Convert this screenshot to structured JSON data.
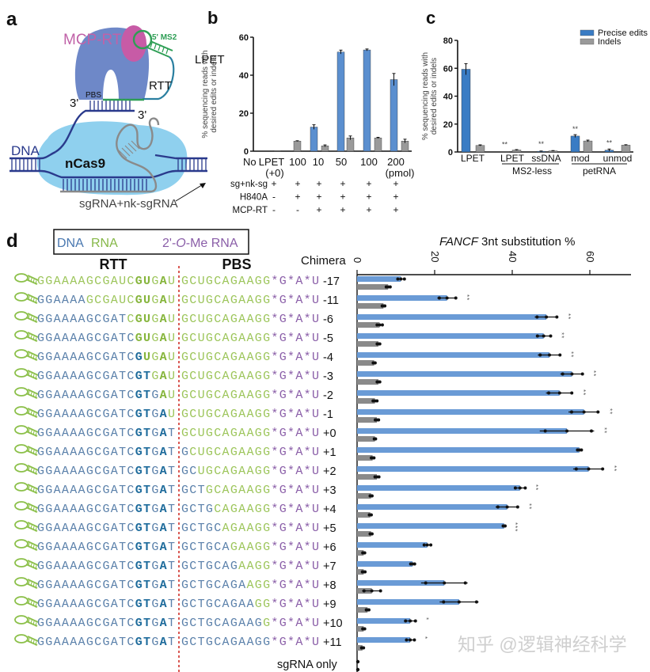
{
  "panel_letters": {
    "a": "a",
    "b": "b",
    "c": "c",
    "d": "d"
  },
  "panel_a": {
    "mcp_rt": "MCP-RT",
    "ms2": "5' MS2",
    "lpet": "LPET",
    "rtt": "RTT",
    "pbs": "PBS",
    "three_prime_1": "3'",
    "three_prime_2": "3'",
    "dna": "DNA",
    "ncas9": "nCas9",
    "sgrna": "sgRNA+nk-sgRNA",
    "colors": {
      "cas9": "#8fd0ee",
      "rt": "#6e88c8",
      "mcp": "#c75ba6",
      "ms2": "#2e9e55",
      "dna": "#2a3a8c",
      "sgrna": "#8a8a8a"
    }
  },
  "chart_data": [
    {
      "panel": "b",
      "type": "bar",
      "ylabel": [
        "% sequencing reads with",
        "desired edits or indels"
      ],
      "ylim": [
        0,
        60
      ],
      "yticks": [
        "0",
        "20",
        "40",
        "60"
      ],
      "categories": [
        [
          "No",
          "LPET",
          "(+0)"
        ],
        [
          "100"
        ],
        [
          "10"
        ],
        [
          "50"
        ],
        [
          "100"
        ],
        [
          "200",
          "(pmol)"
        ]
      ],
      "series": [
        {
          "name": "Precise edits",
          "color": "#5b8fcf",
          "values": [
            0,
            0,
            12.7,
            52.2,
            53.3,
            37.7
          ],
          "err": [
            0,
            0,
            1.2,
            1.0,
            0.5,
            3.2
          ]
        },
        {
          "name": "Indels",
          "color": "#9a9a9a",
          "values": [
            0.3,
            5.3,
            2.8,
            7.0,
            7.0,
            5.3
          ],
          "err": [
            0,
            0.2,
            0.5,
            1.0,
            0.3,
            1.0
          ]
        }
      ],
      "condition_rows": [
        {
          "label": "sg+nk-sg",
          "values": [
            "+",
            "+",
            "+",
            "+",
            "+",
            "+"
          ]
        },
        {
          "label": "H840A",
          "values": [
            "-",
            "+",
            "+",
            "+",
            "+",
            "+"
          ]
        },
        {
          "label": "MCP-RT",
          "values": [
            "-",
            "-",
            "+",
            "+",
            "+",
            "+"
          ]
        }
      ]
    },
    {
      "panel": "c",
      "type": "bar",
      "ylabel": [
        "% sequencing reads with",
        "desired edits or indels"
      ],
      "ylim": [
        0,
        80
      ],
      "yticks": [
        "0",
        "20",
        "40",
        "60",
        "80"
      ],
      "categories": [
        "LPET",
        "LPET",
        "ssDNA",
        "mod",
        "unmod"
      ],
      "groups": [
        {
          "label": "MS2-less",
          "members": [
            "LPET",
            "ssDNA"
          ]
        },
        {
          "label": "petRNA",
          "members": [
            "mod",
            "unmod"
          ]
        }
      ],
      "legend": {
        "position": "top-right",
        "entries": [
          "Precise edits",
          "Indels"
        ]
      },
      "series": [
        {
          "name": "Precise edits",
          "color": "#3a7cc4",
          "values": [
            59.3,
            0.2,
            0.5,
            11.4,
            1.3
          ],
          "err": [
            4.0,
            0,
            0.2,
            1.0,
            0.8
          ],
          "significance": [
            "",
            "**",
            "**",
            "**",
            "**"
          ]
        },
        {
          "name": "Indels",
          "color": "#9a9a9a",
          "values": [
            4.7,
            1.4,
            0.8,
            7.9,
            4.9
          ],
          "err": [
            0.4,
            0.3,
            0.2,
            0.6,
            0.3
          ]
        }
      ]
    },
    {
      "panel": "d",
      "type": "bar",
      "orientation": "horizontal",
      "xlabel_italic": "FANCF",
      "xlabel_rest": " 3nt substitution %",
      "xlim": [
        0,
        70
      ],
      "xticks": [
        "0",
        "20",
        "40",
        "60"
      ],
      "category_header": "Chimera",
      "categories": [
        "-17",
        "-11",
        "-6",
        "-5",
        "-4",
        "-3",
        "-2",
        "-1",
        "+0",
        "+1",
        "+2",
        "+3",
        "+4",
        "+5",
        "+6",
        "+7",
        "+8",
        "+9",
        "+10",
        "+11",
        "sgRNA only"
      ],
      "series": [
        {
          "name": "Precise edits",
          "color": "#6a9bd6",
          "values": [
            11.3,
            23.2,
            48.8,
            48.1,
            49.6,
            55.4,
            52.2,
            58.5,
            54.1,
            57.3,
            59.7,
            42.0,
            38.7,
            37.9,
            18.1,
            14.3,
            22.5,
            26.3,
            13.7,
            13.7,
            0
          ],
          "err": [
            1.0,
            2.5,
            3.0,
            2.0,
            3.0,
            3.0,
            3.5,
            4.0,
            7.0,
            0.6,
            4.0,
            1.5,
            3.0,
            0.3,
            1.0,
            0.6,
            6.0,
            5.0,
            1.5,
            1.2,
            0
          ],
          "significance": [
            "",
            "**",
            "**",
            "**",
            "**",
            "**",
            "**",
            "**",
            "**",
            "",
            "**",
            "**",
            "**",
            "***",
            "",
            "",
            "",
            "",
            "*",
            "*",
            ""
          ]
        },
        {
          "name": "Indels",
          "color": "#8a8a8a",
          "values": [
            8.0,
            6.8,
            5.8,
            5.5,
            4.4,
            5.5,
            4.6,
            5.1,
            4.6,
            4.0,
            5.1,
            3.6,
            3.4,
            3.6,
            1.7,
            1.7,
            3.8,
            2.7,
            1.7,
            1.4,
            0
          ],
          "err": [
            0.6,
            0.4,
            0.8,
            0.4,
            0.3,
            0.4,
            0.6,
            0.5,
            0.2,
            0.4,
            0.6,
            0.3,
            0.3,
            0.3,
            0.3,
            0.4,
            2.5,
            0.4,
            0.3,
            0.3,
            0
          ]
        }
      ]
    }
  ],
  "panel_d": {
    "legend": {
      "dna": "DNA",
      "rna": "RNA",
      "ome_prefix": "2'-",
      "ome_italic": "O",
      "ome_suffix": "-Me RNA"
    },
    "rtt_header": "RTT",
    "pbs_header": "PBS",
    "sequences": [
      {
        "rtt": [
          [
            "GGAAAAGCGAUC",
            "rna"
          ],
          [
            "GU",
            "rna-bold"
          ],
          [
            "G",
            "rna"
          ],
          [
            "A",
            "rna-bold"
          ],
          [
            "U",
            "rna"
          ]
        ],
        "pbs": [
          [
            "GCUGCAGAAGG",
            "rna"
          ],
          [
            "*G*A*U",
            "ome"
          ]
        ]
      },
      {
        "rtt": [
          [
            "GGAAAA",
            "dna"
          ],
          [
            "GCGAUC",
            "rna"
          ],
          [
            "GU",
            "rna-bold"
          ],
          [
            "G",
            "rna"
          ],
          [
            "A",
            "rna-bold"
          ],
          [
            "U",
            "rna"
          ]
        ],
        "pbs": [
          [
            "GCUGCAGAAGG",
            "rna"
          ],
          [
            "*G*A*U",
            "ome"
          ]
        ]
      },
      {
        "rtt": [
          [
            "GGAAAAGCGAT",
            "dna"
          ],
          [
            "C",
            "rna"
          ],
          [
            "GU",
            "rna-bold"
          ],
          [
            "G",
            "rna"
          ],
          [
            "A",
            "rna-bold"
          ],
          [
            "U",
            "rna"
          ]
        ],
        "pbs": [
          [
            "GCUGCAGAAGG",
            "rna"
          ],
          [
            "*G*A*U",
            "ome"
          ]
        ]
      },
      {
        "rtt": [
          [
            "GGAAAAGCGATC",
            "dna"
          ],
          [
            "GU",
            "rna-bold"
          ],
          [
            "G",
            "rna"
          ],
          [
            "A",
            "rna-bold"
          ],
          [
            "U",
            "rna"
          ]
        ],
        "pbs": [
          [
            "GCUGCAGAAGG",
            "rna"
          ],
          [
            "*G*A*U",
            "ome"
          ]
        ]
      },
      {
        "rtt": [
          [
            "GGAAAAGCGATC",
            "dna"
          ],
          [
            "G",
            "dna-bold"
          ],
          [
            "U",
            "rna-bold"
          ],
          [
            "G",
            "rna"
          ],
          [
            "A",
            "rna-bold"
          ],
          [
            "U",
            "rna"
          ]
        ],
        "pbs": [
          [
            "GCUGCAGAAGG",
            "rna"
          ],
          [
            "*G*A*U",
            "ome"
          ]
        ]
      },
      {
        "rtt": [
          [
            "GGAAAAGCGATC",
            "dna"
          ],
          [
            "GT",
            "dna-bold"
          ],
          [
            "G",
            "rna"
          ],
          [
            "A",
            "rna-bold"
          ],
          [
            "U",
            "rna"
          ]
        ],
        "pbs": [
          [
            "GCUGCAGAAGG",
            "rna"
          ],
          [
            "*G*A*U",
            "ome"
          ]
        ]
      },
      {
        "rtt": [
          [
            "GGAAAAGCGATC",
            "dna"
          ],
          [
            "GT",
            "dna-bold"
          ],
          [
            "G",
            "dna"
          ],
          [
            "A",
            "rna-bold"
          ],
          [
            "U",
            "rna"
          ]
        ],
        "pbs": [
          [
            "GCUGCAGAAGG",
            "rna"
          ],
          [
            "*G*A*U",
            "ome"
          ]
        ]
      },
      {
        "rtt": [
          [
            "GGAAAAGCGATC",
            "dna"
          ],
          [
            "GT",
            "dna-bold"
          ],
          [
            "G",
            "dna"
          ],
          [
            "A",
            "dna-bold"
          ],
          [
            "U",
            "rna"
          ]
        ],
        "pbs": [
          [
            "GCUGCAGAAGG",
            "rna"
          ],
          [
            "*G*A*U",
            "ome"
          ]
        ]
      },
      {
        "rtt": [
          [
            "GGAAAAGCGATC",
            "dna"
          ],
          [
            "GT",
            "dna-bold"
          ],
          [
            "G",
            "dna"
          ],
          [
            "A",
            "dna-bold"
          ],
          [
            "T",
            "dna"
          ]
        ],
        "pbs": [
          [
            "GCUGCAGAAGG",
            "rna"
          ],
          [
            "*G*A*U",
            "ome"
          ]
        ]
      },
      {
        "rtt": [
          [
            "GGAAAAGCGATC",
            "dna"
          ],
          [
            "GT",
            "dna-bold"
          ],
          [
            "G",
            "dna"
          ],
          [
            "A",
            "dna-bold"
          ],
          [
            "T",
            "dna"
          ]
        ],
        "pbs": [
          [
            "G",
            "dna"
          ],
          [
            "CUGCAGAAGG",
            "rna"
          ],
          [
            "*G*A*U",
            "ome"
          ]
        ]
      },
      {
        "rtt": [
          [
            "GGAAAAGCGATC",
            "dna"
          ],
          [
            "GT",
            "dna-bold"
          ],
          [
            "G",
            "dna"
          ],
          [
            "A",
            "dna-bold"
          ],
          [
            "T",
            "dna"
          ]
        ],
        "pbs": [
          [
            "GC",
            "dna"
          ],
          [
            "UGCAGAAGG",
            "rna"
          ],
          [
            "*G*A*U",
            "ome"
          ]
        ]
      },
      {
        "rtt": [
          [
            "GGAAAAGCGATC",
            "dna"
          ],
          [
            "GT",
            "dna-bold"
          ],
          [
            "G",
            "dna"
          ],
          [
            "A",
            "dna-bold"
          ],
          [
            "T",
            "dna"
          ]
        ],
        "pbs": [
          [
            "GCT",
            "dna"
          ],
          [
            "GCAGAAGG",
            "rna"
          ],
          [
            "*G*A*U",
            "ome"
          ]
        ]
      },
      {
        "rtt": [
          [
            "GGAAAAGCGATC",
            "dna"
          ],
          [
            "GT",
            "dna-bold"
          ],
          [
            "G",
            "dna"
          ],
          [
            "A",
            "dna-bold"
          ],
          [
            "T",
            "dna"
          ]
        ],
        "pbs": [
          [
            "GCTG",
            "dna"
          ],
          [
            "CAGAAGG",
            "rna"
          ],
          [
            "*G*A*U",
            "ome"
          ]
        ]
      },
      {
        "rtt": [
          [
            "GGAAAAGCGATC",
            "dna"
          ],
          [
            "GT",
            "dna-bold"
          ],
          [
            "G",
            "dna"
          ],
          [
            "A",
            "dna-bold"
          ],
          [
            "T",
            "dna"
          ]
        ],
        "pbs": [
          [
            "GCTGC",
            "dna"
          ],
          [
            "AGAAGG",
            "rna"
          ],
          [
            "*G*A*U",
            "ome"
          ]
        ]
      },
      {
        "rtt": [
          [
            "GGAAAAGCGATC",
            "dna"
          ],
          [
            "GT",
            "dna-bold"
          ],
          [
            "G",
            "dna"
          ],
          [
            "A",
            "dna-bold"
          ],
          [
            "T",
            "dna"
          ]
        ],
        "pbs": [
          [
            "GCTGCA",
            "dna"
          ],
          [
            "GAAGG",
            "rna"
          ],
          [
            "*G*A*U",
            "ome"
          ]
        ]
      },
      {
        "rtt": [
          [
            "GGAAAAGCGATC",
            "dna"
          ],
          [
            "GT",
            "dna-bold"
          ],
          [
            "G",
            "dna"
          ],
          [
            "A",
            "dna-bold"
          ],
          [
            "T",
            "dna"
          ]
        ],
        "pbs": [
          [
            "GCTGCAG",
            "dna"
          ],
          [
            "AAGG",
            "rna"
          ],
          [
            "*G*A*U",
            "ome"
          ]
        ]
      },
      {
        "rtt": [
          [
            "GGAAAAGCGATC",
            "dna"
          ],
          [
            "GT",
            "dna-bold"
          ],
          [
            "G",
            "dna"
          ],
          [
            "A",
            "dna-bold"
          ],
          [
            "T",
            "dna"
          ]
        ],
        "pbs": [
          [
            "GCTGCAGA",
            "dna"
          ],
          [
            "AGG",
            "rna"
          ],
          [
            "*G*A*U",
            "ome"
          ]
        ]
      },
      {
        "rtt": [
          [
            "GGAAAAGCGATC",
            "dna"
          ],
          [
            "GT",
            "dna-bold"
          ],
          [
            "G",
            "dna"
          ],
          [
            "A",
            "dna-bold"
          ],
          [
            "T",
            "dna"
          ]
        ],
        "pbs": [
          [
            "GCTGCAGAA",
            "dna"
          ],
          [
            "GG",
            "rna"
          ],
          [
            "*G*A*U",
            "ome"
          ]
        ]
      },
      {
        "rtt": [
          [
            "GGAAAAGCGATC",
            "dna"
          ],
          [
            "GT",
            "dna-bold"
          ],
          [
            "G",
            "dna"
          ],
          [
            "A",
            "dna-bold"
          ],
          [
            "T",
            "dna"
          ]
        ],
        "pbs": [
          [
            "GCTGCAGAAG",
            "dna"
          ],
          [
            "G",
            "rna"
          ],
          [
            "*G*A*U",
            "ome"
          ]
        ]
      },
      {
        "rtt": [
          [
            "GGAAAAGCGATC",
            "dna"
          ],
          [
            "GT",
            "dna-bold"
          ],
          [
            "G",
            "dna"
          ],
          [
            "A",
            "dna-bold"
          ],
          [
            "T",
            "dna"
          ]
        ],
        "pbs": [
          [
            "GCTGCAGAAGG",
            "dna"
          ],
          [
            "*G*A*U",
            "ome"
          ]
        ]
      }
    ]
  },
  "watermark": "知乎 @逻辑神经科学"
}
